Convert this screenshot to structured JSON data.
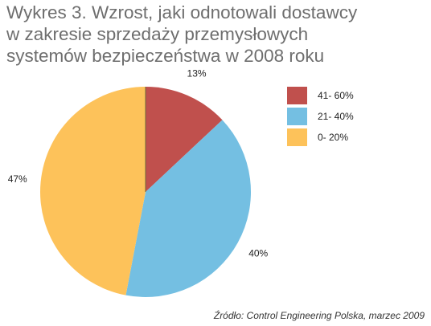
{
  "chart_data": {
    "type": "pie",
    "title": [
      "Wykres 3. Wzrost, jaki odnotowali dostawcy",
      "w zakresie sprzedaży przemysłowych",
      "systemów bezpieczeństwa w 2008 roku"
    ],
    "categories": [
      "41- 60%",
      "21- 40%",
      "0- 20%"
    ],
    "values": [
      13,
      40,
      47
    ],
    "value_labels": [
      "13%",
      "40%",
      "47%"
    ],
    "colors": [
      "#c0504d",
      "#74bfe2",
      "#fdc25a"
    ],
    "legend": "right",
    "source": "Źródło: Control Engineering Polska, marzec 2009"
  }
}
